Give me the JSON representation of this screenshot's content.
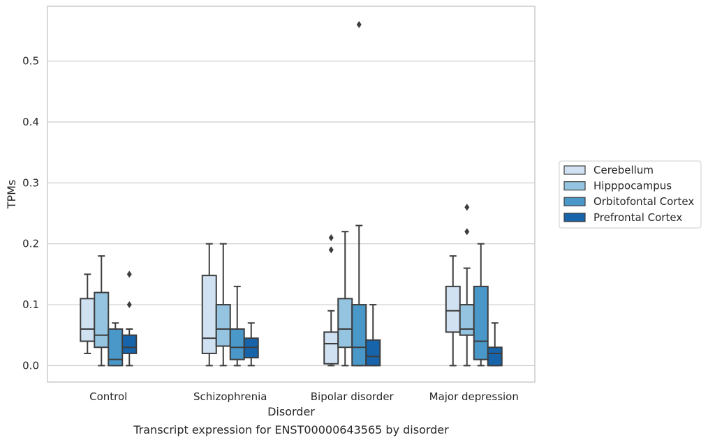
{
  "chart_data": {
    "type": "box",
    "caption": "Transcript expression for ENST00000643565 by disorder",
    "xlabel": "Disorder",
    "ylabel": "TPMs",
    "ylim": [
      -0.027,
      0.59
    ],
    "yticks": [
      "0.0",
      "0.1",
      "0.2",
      "0.3",
      "0.4",
      "0.5"
    ],
    "grid": true,
    "legend_position": "right",
    "categories": [
      "Control",
      "Schizophrenia",
      "Bipolar disorder",
      "Major depression"
    ],
    "series": [
      {
        "name": "Cerebellum",
        "color": "#d0e1f2",
        "boxes": [
          {
            "whislo": 0.02,
            "q1": 0.04,
            "med": 0.06,
            "q3": 0.11,
            "whishi": 0.15,
            "fliers": []
          },
          {
            "whislo": 0.0,
            "q1": 0.02,
            "med": 0.045,
            "q3": 0.148,
            "whishi": 0.2,
            "fliers": []
          },
          {
            "whislo": 0.0,
            "q1": 0.003,
            "med": 0.036,
            "q3": 0.055,
            "whishi": 0.09,
            "fliers": [
              0.19,
              0.21
            ]
          },
          {
            "whislo": 0.0,
            "q1": 0.055,
            "med": 0.09,
            "q3": 0.13,
            "whishi": 0.18,
            "fliers": []
          }
        ]
      },
      {
        "name": "Hipppocampus",
        "color": "#94c4df",
        "boxes": [
          {
            "whislo": 0.0,
            "q1": 0.03,
            "med": 0.05,
            "q3": 0.12,
            "whishi": 0.18,
            "fliers": []
          },
          {
            "whislo": 0.0,
            "q1": 0.032,
            "med": 0.06,
            "q3": 0.1,
            "whishi": 0.2,
            "fliers": []
          },
          {
            "whislo": 0.0,
            "q1": 0.03,
            "med": 0.06,
            "q3": 0.11,
            "whishi": 0.22,
            "fliers": []
          },
          {
            "whislo": 0.0,
            "q1": 0.05,
            "med": 0.06,
            "q3": 0.1,
            "whishi": 0.16,
            "fliers": [
              0.22,
              0.26
            ]
          }
        ]
      },
      {
        "name": "Orbitofontal Cortex",
        "color": "#4a98c9",
        "boxes": [
          {
            "whislo": 0.0,
            "q1": 0.0,
            "med": 0.01,
            "q3": 0.06,
            "whishi": 0.07,
            "fliers": []
          },
          {
            "whislo": 0.0,
            "q1": 0.01,
            "med": 0.03,
            "q3": 0.06,
            "whishi": 0.13,
            "fliers": []
          },
          {
            "whislo": 0.0,
            "q1": 0.0,
            "med": 0.03,
            "q3": 0.1,
            "whishi": 0.23,
            "fliers": [
              0.56
            ]
          },
          {
            "whislo": 0.0,
            "q1": 0.01,
            "med": 0.04,
            "q3": 0.13,
            "whishi": 0.2,
            "fliers": []
          }
        ]
      },
      {
        "name": "Prefrontal Cortex",
        "color": "#1764ab",
        "boxes": [
          {
            "whislo": 0.0,
            "q1": 0.02,
            "med": 0.03,
            "q3": 0.05,
            "whishi": 0.06,
            "fliers": [
              0.1,
              0.15
            ]
          },
          {
            "whislo": 0.0,
            "q1": 0.013,
            "med": 0.03,
            "q3": 0.045,
            "whishi": 0.07,
            "fliers": []
          },
          {
            "whislo": 0.0,
            "q1": 0.0,
            "med": 0.015,
            "q3": 0.042,
            "whishi": 0.1,
            "fliers": []
          },
          {
            "whislo": 0.0,
            "q1": 0.0,
            "med": 0.02,
            "q3": 0.03,
            "whishi": 0.07,
            "fliers": []
          }
        ]
      }
    ]
  }
}
